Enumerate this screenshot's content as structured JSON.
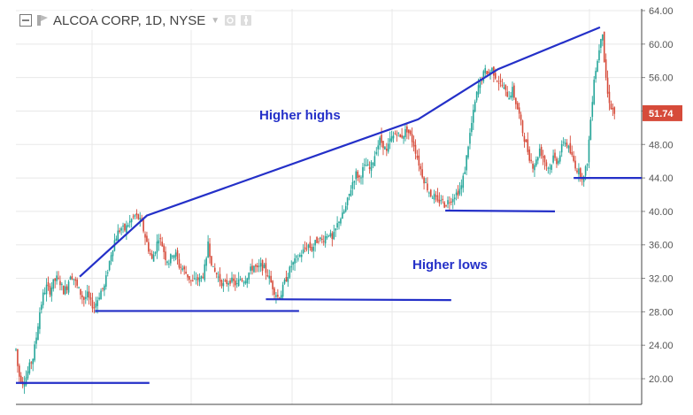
{
  "header": {
    "symbol_title": "ALCOA CORP, 1D, NYSE",
    "collapse_icon": "collapse-square-icon",
    "symbol_icon": "symbol-flag-icon",
    "dropdown_icon": "chevron-down-icon",
    "settings_icon": "gear-icon",
    "settings2_icon": "settings-icon"
  },
  "chart_data": {
    "type": "candlestick",
    "title": "ALCOA CORP, 1D, NYSE",
    "ylim": [
      18,
      64
    ],
    "y_ticks": [
      "64.00",
      "60.00",
      "56.00",
      "52.00",
      "48.00",
      "44.00",
      "40.00",
      "36.00",
      "32.00",
      "28.00",
      "24.00",
      "20.00"
    ],
    "grid": true,
    "last_price": {
      "label": "51.74",
      "value": 51.74,
      "color": "#d64b3a"
    },
    "colors": {
      "up": "#26a69a",
      "down": "#d64b3a",
      "trendline": "#2430c8"
    },
    "price_path": [
      [
        0,
        23.5
      ],
      [
        3,
        20.5
      ],
      [
        8,
        19.6
      ],
      [
        12,
        20.2
      ],
      [
        16,
        21.5
      ],
      [
        20,
        22.5
      ],
      [
        24,
        25
      ],
      [
        28,
        28
      ],
      [
        32,
        30
      ],
      [
        36,
        31
      ],
      [
        40,
        30.5
      ],
      [
        44,
        31.5
      ],
      [
        48,
        32
      ],
      [
        52,
        31.5
      ],
      [
        56,
        30.5
      ],
      [
        60,
        31
      ],
      [
        64,
        32.5
      ],
      [
        68,
        32
      ],
      [
        72,
        31
      ],
      [
        76,
        30.2
      ],
      [
        80,
        29.5
      ],
      [
        84,
        30
      ],
      [
        88,
        29
      ],
      [
        92,
        28.6
      ],
      [
        96,
        29.5
      ],
      [
        100,
        30.5
      ],
      [
        104,
        31
      ],
      [
        108,
        33
      ],
      [
        112,
        35
      ],
      [
        116,
        36.5
      ],
      [
        120,
        37.5
      ],
      [
        124,
        38
      ],
      [
        128,
        37.8
      ],
      [
        132,
        38.5
      ],
      [
        136,
        39
      ],
      [
        140,
        39.5
      ],
      [
        144,
        39.2
      ],
      [
        148,
        38.5
      ],
      [
        152,
        37
      ],
      [
        156,
        35.5
      ],
      [
        160,
        34.2
      ],
      [
        164,
        35.5
      ],
      [
        168,
        37
      ],
      [
        172,
        36
      ],
      [
        176,
        34.5
      ],
      [
        180,
        34
      ],
      [
        184,
        35
      ],
      [
        188,
        34.8
      ],
      [
        192,
        33.5
      ],
      [
        196,
        33.2
      ],
      [
        200,
        32.6
      ],
      [
        204,
        32
      ],
      [
        208,
        31.5
      ],
      [
        212,
        32
      ],
      [
        216,
        31.8
      ],
      [
        220,
        32.5
      ],
      [
        224,
        34
      ],
      [
        226,
        36.5
      ],
      [
        228,
        35
      ],
      [
        232,
        33
      ],
      [
        236,
        32.5
      ],
      [
        240,
        31.8
      ],
      [
        244,
        31.2
      ],
      [
        248,
        31.5
      ],
      [
        252,
        31.8
      ],
      [
        256,
        31.5
      ],
      [
        260,
        31.2
      ],
      [
        264,
        32
      ],
      [
        268,
        31.8
      ],
      [
        272,
        32.3
      ],
      [
        276,
        33
      ],
      [
        280,
        33.5
      ],
      [
        284,
        33
      ],
      [
        288,
        33.5
      ],
      [
        292,
        33.2
      ],
      [
        296,
        32.5
      ],
      [
        300,
        31.5
      ],
      [
        304,
        30.5
      ],
      [
        308,
        29.8
      ],
      [
        312,
        30.2
      ],
      [
        316,
        31.5
      ],
      [
        320,
        32.5
      ],
      [
        324,
        33.5
      ],
      [
        328,
        34
      ],
      [
        332,
        34.5
      ],
      [
        336,
        35
      ],
      [
        340,
        35.5
      ],
      [
        344,
        36
      ],
      [
        348,
        35.5
      ],
      [
        352,
        36.2
      ],
      [
        356,
        36.8
      ],
      [
        360,
        36.5
      ],
      [
        364,
        37
      ],
      [
        368,
        37.5
      ],
      [
        372,
        36.5
      ],
      [
        376,
        37.8
      ],
      [
        380,
        39
      ],
      [
        384,
        39.5
      ],
      [
        388,
        40.5
      ],
      [
        392,
        42
      ],
      [
        396,
        43.5
      ],
      [
        400,
        44.5
      ],
      [
        404,
        44
      ],
      [
        408,
        45
      ],
      [
        412,
        45.5
      ],
      [
        416,
        45
      ],
      [
        420,
        46
      ],
      [
        424,
        47.5
      ],
      [
        428,
        48.5
      ],
      [
        432,
        48
      ],
      [
        436,
        47
      ],
      [
        440,
        48.5
      ],
      [
        444,
        49
      ],
      [
        448,
        49.5
      ],
      [
        452,
        48.8
      ],
      [
        456,
        49.3
      ],
      [
        460,
        49.8
      ],
      [
        464,
        49
      ],
      [
        468,
        48
      ],
      [
        472,
        46.5
      ],
      [
        476,
        45
      ],
      [
        480,
        43.8
      ],
      [
        484,
        42.8
      ],
      [
        488,
        42
      ],
      [
        492,
        41.8
      ],
      [
        496,
        41
      ],
      [
        500,
        41.5
      ],
      [
        504,
        40.8
      ],
      [
        508,
        41.2
      ],
      [
        512,
        41.5
      ],
      [
        516,
        42
      ],
      [
        520,
        42.3
      ],
      [
        524,
        43
      ],
      [
        528,
        45
      ],
      [
        532,
        48
      ],
      [
        536,
        50.5
      ],
      [
        540,
        53
      ],
      [
        544,
        55
      ],
      [
        548,
        56
      ],
      [
        552,
        56.8
      ],
      [
        556,
        56.5
      ],
      [
        560,
        57
      ],
      [
        564,
        56.2
      ],
      [
        568,
        55.5
      ],
      [
        572,
        55
      ],
      [
        576,
        54.2
      ],
      [
        580,
        53.8
      ],
      [
        584,
        54.5
      ],
      [
        588,
        53
      ],
      [
        592,
        51.5
      ],
      [
        596,
        49.5
      ],
      [
        600,
        48
      ],
      [
        604,
        46.5
      ],
      [
        608,
        45.5
      ],
      [
        612,
        46
      ],
      [
        616,
        47.5
      ],
      [
        620,
        46.5
      ],
      [
        624,
        45.5
      ],
      [
        628,
        45.2
      ],
      [
        632,
        46.5
      ],
      [
        636,
        46
      ],
      [
        640,
        46.8
      ],
      [
        644,
        48.5
      ],
      [
        648,
        48
      ],
      [
        652,
        47
      ],
      [
        656,
        46
      ],
      [
        660,
        45
      ],
      [
        664,
        44.5
      ],
      [
        668,
        44
      ],
      [
        672,
        46
      ],
      [
        676,
        51
      ],
      [
        680,
        56
      ],
      [
        684,
        58
      ],
      [
        688,
        61
      ],
      [
        690,
        61.5
      ],
      [
        692,
        58
      ],
      [
        696,
        54
      ],
      [
        700,
        52.5
      ],
      [
        704,
        51.74
      ]
    ],
    "trendlines_highs": [
      [
        75,
        32.2
      ],
      [
        154,
        39.5
      ],
      [
        473,
        51
      ],
      [
        567,
        57
      ],
      [
        687,
        62
      ]
    ],
    "trendlines_lows": [
      [
        0,
        19.5
      ],
      [
        157,
        19.5
      ],
      [
        93,
        28.1
      ],
      [
        333,
        28.1
      ],
      [
        294,
        29.5
      ],
      [
        512,
        29.4
      ],
      [
        505,
        40.1
      ],
      [
        634,
        40
      ],
      [
        656,
        44
      ],
      [
        736,
        44
      ]
    ],
    "annotations": {
      "highs_label": "Higher highs",
      "lows_label": "Higher lows"
    }
  }
}
